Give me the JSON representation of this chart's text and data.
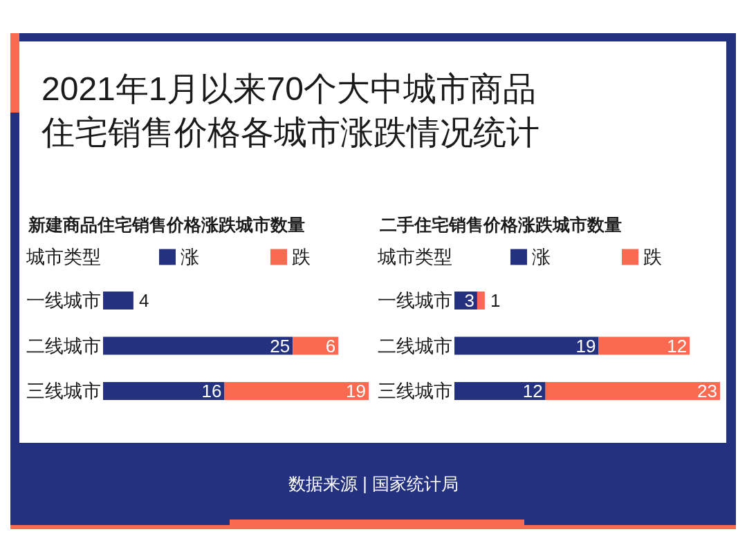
{
  "chart_data": [
    {
      "type": "bar",
      "orientation": "horizontal",
      "stacked": true,
      "title": "2021年1月以来70个大中城市商品住宅销售价格各城市涨跌情况统计",
      "subtitle": "新建商品住宅销售价格涨跌城市数量",
      "legend_title": "城市类型",
      "legend": "top",
      "categories": [
        "一线城市",
        "二线城市",
        "三线城市"
      ],
      "series": [
        {
          "name": "涨",
          "color": "#24317f",
          "values": [
            4,
            25,
            16
          ],
          "value_labels": [
            "4",
            "25",
            "16"
          ]
        },
        {
          "name": "跌",
          "color": "#fa6a50",
          "values": [
            0,
            6,
            19
          ],
          "value_labels": [
            null,
            "6",
            "19"
          ]
        }
      ],
      "annotations": [
        "数据来源 | 国家统计局"
      ]
    },
    {
      "type": "bar",
      "orientation": "horizontal",
      "stacked": true,
      "title": "二手住宅销售价格涨跌城市数量",
      "legend_title": "城市类型",
      "legend": "top",
      "data_labels": true,
      "categories": [
        "一线城市",
        "二线城市",
        "三线城市"
      ],
      "series": [
        {
          "name": "涨",
          "color": "#24317f",
          "values": [
            3,
            19,
            12
          ]
        },
        {
          "name": "跌",
          "color": "#fa6a50",
          "values": [
            1,
            12,
            23
          ]
        }
      ]
    }
  ]
}
